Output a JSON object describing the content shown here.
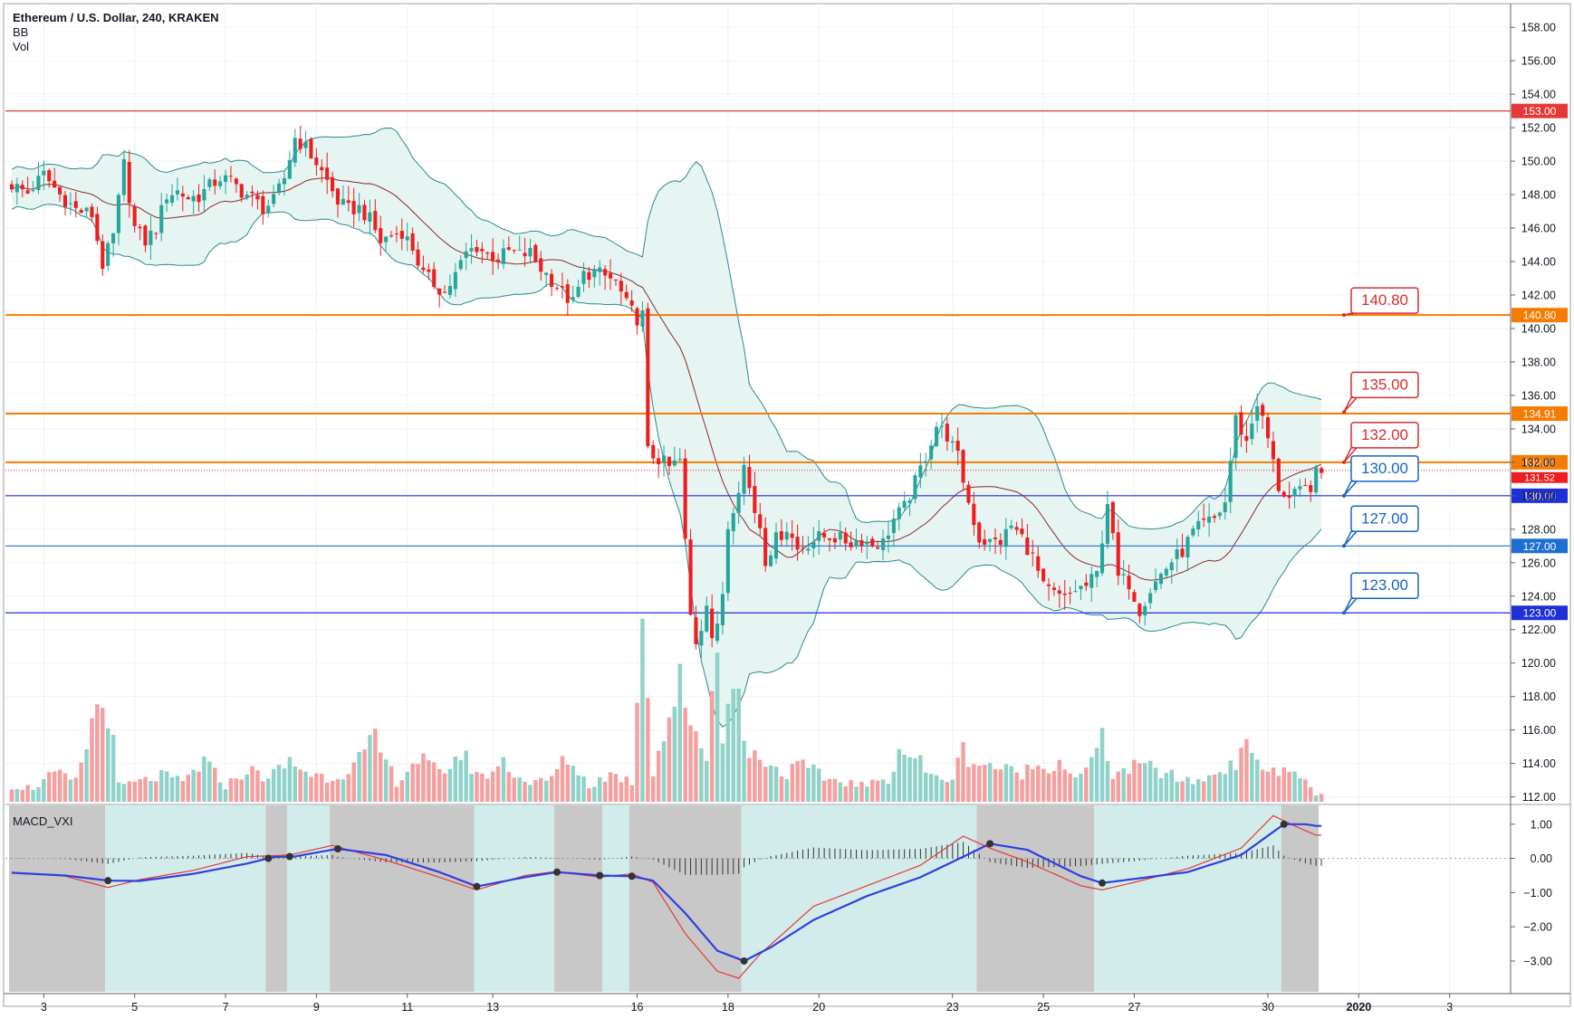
{
  "legend": {
    "title": "Ethereum / U.S. Dollar, 240, KRAKEN",
    "indicator_bb": "BB",
    "indicator_vol": "Vol"
  },
  "macd_panel": {
    "label": "MACD_VXI"
  },
  "colors": {
    "up": "#26a69a",
    "down": "#ef1d1d",
    "vol_up": "#8fd2c9",
    "vol_down": "#f5a0a0",
    "bb_band": "#2a8a8f",
    "bb_basis": "#8b2a2a",
    "bb_fill": "#e6f4f2",
    "red_line": "#e53935",
    "orange_line": "#f57c00",
    "blue_line": "#1f2fd6",
    "steel_line": "#1e6fd0",
    "macd_blue": "#2f3fe0",
    "macd_red": "#e53935",
    "regime_gray": "#c8c8c8",
    "regime_teal": "#d2eceb"
  },
  "chart_data": [
    {
      "type": "candlestick",
      "title": "Ethereum / U.S. Dollar, 240, KRAKEN",
      "x_ticks": [
        "3",
        "5",
        "7",
        "9",
        "11",
        "13",
        "16",
        "18",
        "20",
        "23",
        "25",
        "27",
        "30",
        "2020",
        "3"
      ],
      "y_ticks": [
        "158.00",
        "156.00",
        "154.00",
        "152.00",
        "150.00",
        "148.00",
        "146.00",
        "144.00",
        "142.00",
        "140.00",
        "138.00",
        "136.00",
        "134.00",
        "132.00",
        "130.00",
        "128.00",
        "126.00",
        "124.00",
        "122.00",
        "120.00",
        "118.00",
        "116.00",
        "114.00",
        "112.00"
      ],
      "ylim": [
        111.6,
        159.2
      ],
      "horizontal_levels": [
        {
          "price": 153.0,
          "tag": "153.00",
          "kind": "red"
        },
        {
          "price": 140.8,
          "tag": "140.80",
          "kind": "orange"
        },
        {
          "price": 134.91,
          "tag": "134.91",
          "kind": "orange"
        },
        {
          "price": 132.0,
          "tag": "132.00",
          "kind": "orange"
        },
        {
          "price": 130.0,
          "tag": "130.00",
          "kind": "blue"
        },
        {
          "price": 127.0,
          "tag": "127.00",
          "kind": "steel"
        },
        {
          "price": 123.0,
          "tag": "123.00",
          "kind": "blue"
        }
      ],
      "price_callouts": [
        {
          "price": 140.8,
          "label": "140.80",
          "kind": "red"
        },
        {
          "price": 135.0,
          "label": "135.00",
          "kind": "red"
        },
        {
          "price": 132.0,
          "label": "132.00",
          "kind": "red"
        },
        {
          "price": 130.0,
          "label": "130.00",
          "kind": "blue"
        },
        {
          "price": 127.0,
          "label": "127.00",
          "kind": "blue"
        },
        {
          "price": 123.0,
          "label": "123.00",
          "kind": "blue"
        }
      ],
      "last_price": {
        "price": 131.52,
        "label": "131.52"
      },
      "close_path": [
        [
          0,
          148.6
        ],
        [
          3,
          148.1
        ],
        [
          6,
          149.2
        ],
        [
          9,
          148.0
        ],
        [
          12,
          147.1
        ],
        [
          15,
          146.8
        ],
        [
          17,
          143.8
        ],
        [
          19,
          145.5
        ],
        [
          21,
          149.8
        ],
        [
          23,
          146.0
        ],
        [
          25,
          145.2
        ],
        [
          27,
          146.0
        ],
        [
          29,
          148.0
        ],
        [
          31,
          148.2
        ],
        [
          33,
          147.8
        ],
        [
          35,
          147.9
        ],
        [
          37,
          148.5
        ],
        [
          39,
          149.0
        ],
        [
          41,
          148.8
        ],
        [
          43,
          148.2
        ],
        [
          45,
          147.8
        ],
        [
          47,
          147.2
        ],
        [
          49,
          147.6
        ],
        [
          51,
          149.0
        ],
        [
          53,
          151.4
        ],
        [
          55,
          150.8
        ],
        [
          57,
          149.9
        ],
        [
          59,
          148.8
        ],
        [
          61,
          147.6
        ],
        [
          63,
          147.1
        ],
        [
          65,
          147.2
        ],
        [
          67,
          146.5
        ],
        [
          69,
          145.2
        ],
        [
          71,
          145.6
        ],
        [
          73,
          145.8
        ],
        [
          75,
          144.8
        ],
        [
          77,
          143.2
        ],
        [
          79,
          142.7
        ],
        [
          81,
          142.1
        ],
        [
          83,
          143.2
        ],
        [
          85,
          144.5
        ],
        [
          87,
          144.9
        ],
        [
          89,
          144.4
        ],
        [
          91,
          144.2
        ],
        [
          93,
          144.6
        ],
        [
          95,
          144.4
        ],
        [
          97,
          144.5
        ],
        [
          99,
          143.6
        ],
        [
          101,
          142.9
        ],
        [
          103,
          142.1
        ],
        [
          105,
          141.5
        ],
        [
          107,
          143.2
        ],
        [
          109,
          143.4
        ],
        [
          111,
          143.1
        ],
        [
          113,
          142.8
        ],
        [
          115,
          141.4
        ],
        [
          117,
          140.6
        ],
        [
          118,
          140.8
        ],
        [
          119,
          132.6
        ],
        [
          121,
          132.2
        ],
        [
          123,
          131.7
        ],
        [
          125,
          132.1
        ],
        [
          126,
          127.2
        ],
        [
          127,
          122.8
        ],
        [
          128,
          121.3
        ],
        [
          129,
          122.2
        ],
        [
          130,
          123.8
        ],
        [
          131,
          121.6
        ],
        [
          132,
          122.0
        ],
        [
          133,
          124.2
        ],
        [
          134,
          128.2
        ],
        [
          135,
          129.4
        ],
        [
          137,
          131.8
        ],
        [
          139,
          129.1
        ],
        [
          140,
          128.2
        ],
        [
          141,
          126.2
        ],
        [
          143,
          127.4
        ],
        [
          145,
          128.1
        ],
        [
          147,
          126.8
        ],
        [
          149,
          127.2
        ],
        [
          151,
          127.5
        ],
        [
          153,
          127.6
        ],
        [
          155,
          127.4
        ],
        [
          157,
          127.2
        ],
        [
          159,
          127.4
        ],
        [
          161,
          127.1
        ],
        [
          163,
          127.2
        ],
        [
          165,
          128.6
        ],
        [
          167,
          129.3
        ],
        [
          169,
          130.8
        ],
        [
          171,
          132.4
        ],
        [
          173,
          134.2
        ],
        [
          175,
          133.6
        ],
        [
          177,
          132.3
        ],
        [
          179,
          129.6
        ],
        [
          181,
          127.4
        ],
        [
          183,
          127.2
        ],
        [
          185,
          127.3
        ],
        [
          187,
          128.2
        ],
        [
          189,
          127.5
        ],
        [
          191,
          126.3
        ],
        [
          193,
          124.5
        ],
        [
          195,
          124.1
        ],
        [
          197,
          123.8
        ],
        [
          199,
          124.4
        ],
        [
          201,
          124.6
        ],
        [
          203,
          125.3
        ],
        [
          205,
          129.7
        ],
        [
          207,
          125.1
        ],
        [
          209,
          124.8
        ],
        [
          211,
          123.2
        ],
        [
          213,
          124.4
        ],
        [
          215,
          125.3
        ],
        [
          217,
          126.1
        ],
        [
          219,
          126.7
        ],
        [
          221,
          127.8
        ],
        [
          223,
          128.3
        ],
        [
          225,
          128.6
        ],
        [
          227,
          129.6
        ],
        [
          229,
          134.6
        ],
        [
          231,
          133.2
        ],
        [
          233,
          135.6
        ],
        [
          235,
          133.4
        ],
        [
          237,
          130.5
        ],
        [
          239,
          129.8
        ],
        [
          241,
          130.2
        ],
        [
          243,
          130.6
        ],
        [
          244,
          131.3
        ]
      ]
    },
    {
      "type": "bar",
      "title": "Vol",
      "description_free": true,
      "relative_volume_path": [
        [
          0,
          0.08
        ],
        [
          4,
          0.07
        ],
        [
          8,
          0.14
        ],
        [
          12,
          0.1
        ],
        [
          16,
          0.48
        ],
        [
          18,
          0.48
        ],
        [
          20,
          0.08
        ],
        [
          24,
          0.1
        ],
        [
          28,
          0.13
        ],
        [
          32,
          0.1
        ],
        [
          36,
          0.2
        ],
        [
          40,
          0.08
        ],
        [
          44,
          0.16
        ],
        [
          48,
          0.12
        ],
        [
          52,
          0.2
        ],
        [
          56,
          0.14
        ],
        [
          60,
          0.12
        ],
        [
          64,
          0.18
        ],
        [
          68,
          0.3
        ],
        [
          72,
          0.1
        ],
        [
          76,
          0.22
        ],
        [
          80,
          0.14
        ],
        [
          84,
          0.24
        ],
        [
          88,
          0.12
        ],
        [
          92,
          0.2
        ],
        [
          96,
          0.1
        ],
        [
          100,
          0.1
        ],
        [
          104,
          0.22
        ],
        [
          108,
          0.08
        ],
        [
          112,
          0.14
        ],
        [
          116,
          0.1
        ],
        [
          118,
          1.0
        ],
        [
          120,
          0.16
        ],
        [
          124,
          0.52
        ],
        [
          125,
          0.58
        ],
        [
          126,
          0.42
        ],
        [
          128,
          0.4
        ],
        [
          130,
          0.2
        ],
        [
          131,
          0.6
        ],
        [
          132,
          0.72
        ],
        [
          133,
          0.38
        ],
        [
          134,
          0.58
        ],
        [
          136,
          0.5
        ],
        [
          138,
          0.22
        ],
        [
          140,
          0.24
        ],
        [
          144,
          0.14
        ],
        [
          148,
          0.18
        ],
        [
          152,
          0.12
        ],
        [
          156,
          0.1
        ],
        [
          160,
          0.08
        ],
        [
          164,
          0.12
        ],
        [
          166,
          0.26
        ],
        [
          168,
          0.24
        ],
        [
          170,
          0.2
        ],
        [
          172,
          0.12
        ],
        [
          176,
          0.12
        ],
        [
          178,
          0.26
        ],
        [
          180,
          0.2
        ],
        [
          184,
          0.18
        ],
        [
          188,
          0.14
        ],
        [
          192,
          0.18
        ],
        [
          196,
          0.2
        ],
        [
          200,
          0.12
        ],
        [
          204,
          0.3
        ],
        [
          206,
          0.14
        ],
        [
          208,
          0.16
        ],
        [
          212,
          0.18
        ],
        [
          216,
          0.14
        ],
        [
          220,
          0.1
        ],
        [
          224,
          0.12
        ],
        [
          228,
          0.2
        ],
        [
          230,
          0.22
        ],
        [
          232,
          0.3
        ],
        [
          234,
          0.18
        ],
        [
          236,
          0.14
        ],
        [
          240,
          0.16
        ],
        [
          244,
          0.04
        ]
      ]
    },
    {
      "type": "line",
      "title": "MACD_VXI",
      "y_ticks": [
        "1.00",
        "0.00",
        "−1.00",
        "−2.00",
        "−3.00"
      ],
      "ylim": [
        -3.9,
        1.55
      ],
      "macd_blue": [
        [
          0,
          -0.42
        ],
        [
          10,
          -0.5
        ],
        [
          18,
          -0.65
        ],
        [
          24,
          -0.66
        ],
        [
          34,
          -0.45
        ],
        [
          44,
          -0.15
        ],
        [
          49,
          0.04
        ],
        [
          53,
          0.06
        ],
        [
          61,
          0.28
        ],
        [
          70,
          0.1
        ],
        [
          80,
          -0.4
        ],
        [
          87,
          -0.82
        ],
        [
          96,
          -0.55
        ],
        [
          102,
          -0.4
        ],
        [
          110,
          -0.5
        ],
        [
          116,
          -0.52
        ],
        [
          120,
          -0.65
        ],
        [
          126,
          -1.6
        ],
        [
          132,
          -2.7
        ],
        [
          137,
          -3.0
        ],
        [
          142,
          -2.6
        ],
        [
          150,
          -1.8
        ],
        [
          160,
          -1.1
        ],
        [
          170,
          -0.55
        ],
        [
          180,
          0.2
        ],
        [
          183,
          0.43
        ],
        [
          190,
          0.25
        ],
        [
          200,
          -0.52
        ],
        [
          204,
          -0.72
        ],
        [
          210,
          -0.6
        ],
        [
          220,
          -0.4
        ],
        [
          230,
          0.1
        ],
        [
          238,
          1.0
        ],
        [
          242,
          1.0
        ],
        [
          244,
          0.95
        ]
      ],
      "macd_red": [
        [
          0,
          -0.4
        ],
        [
          10,
          -0.52
        ],
        [
          18,
          -0.85
        ],
        [
          24,
          -0.62
        ],
        [
          34,
          -0.35
        ],
        [
          44,
          0.05
        ],
        [
          52,
          0.1
        ],
        [
          60,
          0.38
        ],
        [
          70,
          -0.05
        ],
        [
          80,
          -0.55
        ],
        [
          87,
          -0.92
        ],
        [
          96,
          -0.5
        ],
        [
          102,
          -0.38
        ],
        [
          110,
          -0.55
        ],
        [
          116,
          -0.45
        ],
        [
          120,
          -0.7
        ],
        [
          126,
          -2.2
        ],
        [
          132,
          -3.3
        ],
        [
          136,
          -3.5
        ],
        [
          140,
          -2.8
        ],
        [
          150,
          -1.4
        ],
        [
          160,
          -0.8
        ],
        [
          170,
          -0.2
        ],
        [
          178,
          0.65
        ],
        [
          183,
          0.3
        ],
        [
          190,
          -0.1
        ],
        [
          200,
          -0.8
        ],
        [
          204,
          -0.92
        ],
        [
          210,
          -0.7
        ],
        [
          220,
          -0.3
        ],
        [
          230,
          0.3
        ],
        [
          236,
          1.25
        ],
        [
          240,
          0.95
        ],
        [
          244,
          0.68
        ]
      ],
      "signal_dots": [
        18,
        48,
        52,
        61,
        87,
        102,
        110,
        116,
        137,
        183,
        204,
        238
      ],
      "regimes": [
        [
          0,
          18,
          "gray"
        ],
        [
          18,
          48,
          "teal"
        ],
        [
          48,
          52,
          "gray"
        ],
        [
          52,
          60,
          "teal"
        ],
        [
          60,
          87,
          "gray"
        ],
        [
          87,
          102,
          "teal"
        ],
        [
          102,
          111,
          "gray"
        ],
        [
          111,
          116,
          "teal"
        ],
        [
          116,
          137,
          "gray"
        ],
        [
          137,
          181,
          "teal"
        ],
        [
          181,
          203,
          "gray"
        ],
        [
          203,
          238,
          "teal"
        ],
        [
          238,
          245,
          "gray"
        ]
      ]
    }
  ]
}
